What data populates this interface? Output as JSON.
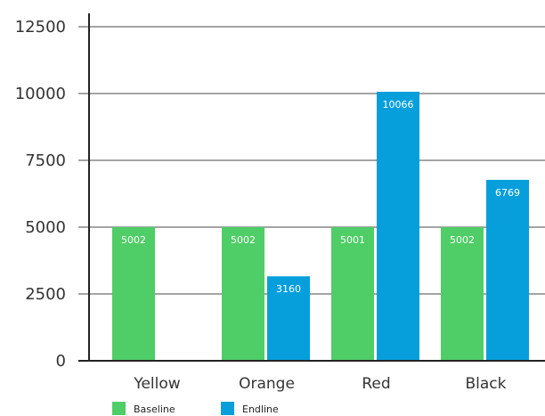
{
  "chart_data": {
    "type": "bar",
    "categories": [
      "Yellow",
      "Orange",
      "Red",
      "Black"
    ],
    "series": [
      {
        "name": "Baseline",
        "color": "#4FCD66",
        "values": [
          5002,
          5002,
          5001,
          5002
        ]
      },
      {
        "name": "Endline",
        "color": "#069FDC",
        "values": [
          null,
          3160,
          10066,
          6769
        ]
      }
    ],
    "data_labels": [
      [
        "5002",
        "5002",
        "5001",
        "5002"
      ],
      [
        "",
        "3160",
        "10066",
        "6769"
      ]
    ],
    "ylim": [
      0,
      12500
    ],
    "yticks": [
      0,
      2500,
      5000,
      7500,
      10000,
      12500
    ],
    "ytick_labels": [
      "0",
      "2500",
      "5000",
      "7500",
      "10000",
      "12500"
    ],
    "grid": true,
    "legend": "bottom-left"
  }
}
